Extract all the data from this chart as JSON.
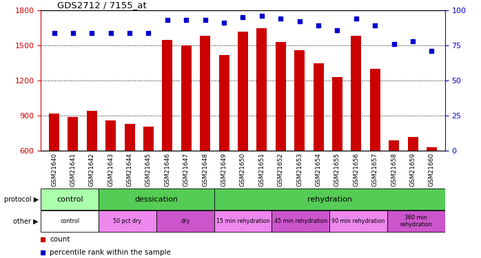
{
  "title": "GDS2712 / 7155_at",
  "samples": [
    "GSM21640",
    "GSM21641",
    "GSM21642",
    "GSM21643",
    "GSM21644",
    "GSM21645",
    "GSM21646",
    "GSM21647",
    "GSM21648",
    "GSM21649",
    "GSM21650",
    "GSM21651",
    "GSM21652",
    "GSM21653",
    "GSM21654",
    "GSM21655",
    "GSM21656",
    "GSM21657",
    "GSM21658",
    "GSM21659",
    "GSM21660"
  ],
  "counts": [
    920,
    890,
    940,
    860,
    830,
    810,
    1550,
    1500,
    1580,
    1420,
    1620,
    1650,
    1530,
    1460,
    1350,
    1230,
    1580,
    1300,
    690,
    720,
    630
  ],
  "percentiles": [
    84,
    84,
    84,
    84,
    84,
    84,
    93,
    93,
    93,
    91,
    95,
    96,
    94,
    92,
    89,
    86,
    94,
    89,
    76,
    78,
    71
  ],
  "bar_color": "#cc0000",
  "dot_color": "#0000cc",
  "ylim_left": [
    600,
    1800
  ],
  "ylim_right": [
    0,
    100
  ],
  "yticks_left": [
    600,
    900,
    1200,
    1500,
    1800
  ],
  "yticks_right": [
    0,
    25,
    50,
    75,
    100
  ],
  "grid_values": [
    900,
    1200,
    1500
  ],
  "protocol_segments": [
    {
      "label": "control",
      "start": 0,
      "end": 3,
      "color": "#aaffaa"
    },
    {
      "label": "dessication",
      "start": 3,
      "end": 9,
      "color": "#55cc55"
    },
    {
      "label": "rehydration",
      "start": 9,
      "end": 21,
      "color": "#55cc55"
    }
  ],
  "other_segments": [
    {
      "label": "control",
      "start": 0,
      "end": 3,
      "color": "#ffffff"
    },
    {
      "label": "50 pct dry",
      "start": 3,
      "end": 6,
      "color": "#ee88ee"
    },
    {
      "label": "dry",
      "start": 6,
      "end": 9,
      "color": "#cc55cc"
    },
    {
      "label": "15 min rehydration",
      "start": 9,
      "end": 12,
      "color": "#ee88ee"
    },
    {
      "label": "45 min rehydration",
      "start": 12,
      "end": 15,
      "color": "#cc55cc"
    },
    {
      "label": "90 min rehydration",
      "start": 15,
      "end": 18,
      "color": "#ee88ee"
    },
    {
      "label": "360 min\nrehydration",
      "start": 18,
      "end": 21,
      "color": "#cc55cc"
    }
  ],
  "bg_color": "#ffffff",
  "tick_bg_color": "#cccccc"
}
